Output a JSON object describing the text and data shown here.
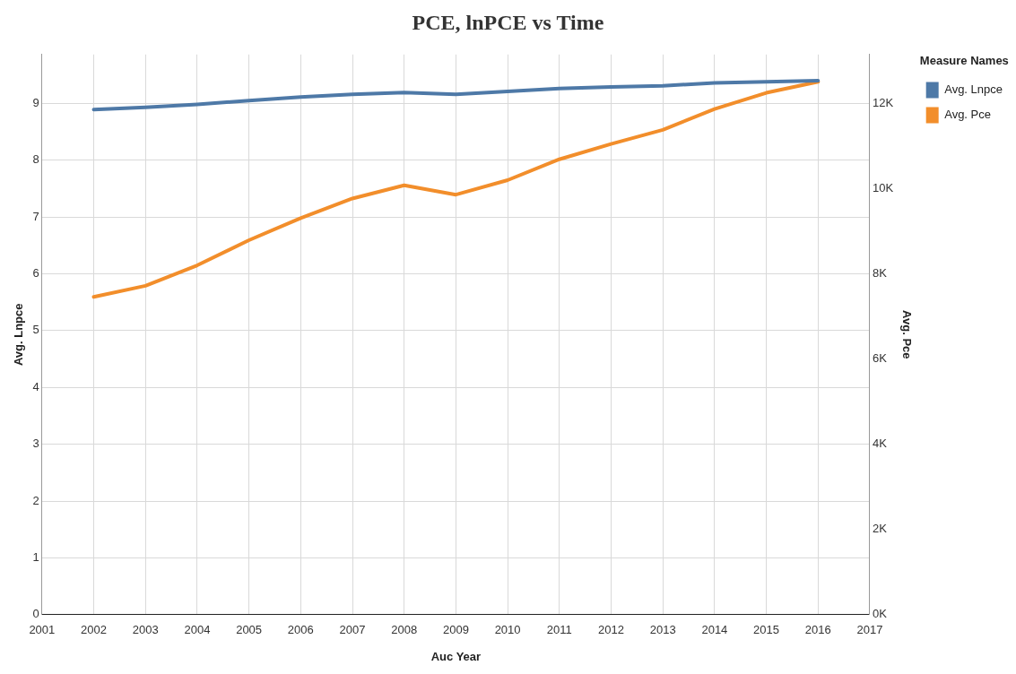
{
  "chart_data": {
    "type": "line",
    "title": "PCE, lnPCE vs Time",
    "xlabel": "Auc Year",
    "ylabel": "Avg. Lnpce",
    "y2label": "Avg. Pce",
    "legend_title": "Measure Names",
    "legend": "top right",
    "grid": true,
    "marker": "none",
    "line_style": "solid",
    "x": [
      2002,
      2003,
      2004,
      2005,
      2006,
      2007,
      2008,
      2009,
      2010,
      2011,
      2012,
      2013,
      2014,
      2015,
      2016
    ],
    "xlim": [
      2001,
      2017
    ],
    "xticks": [
      2001,
      2002,
      2003,
      2004,
      2005,
      2006,
      2007,
      2008,
      2009,
      2010,
      2011,
      2012,
      2013,
      2014,
      2015,
      2016,
      2017
    ],
    "ylim": [
      0,
      9.86
    ],
    "yticks": [
      0,
      1,
      2,
      3,
      4,
      5,
      6,
      7,
      8,
      9
    ],
    "y2lim": [
      0,
      13150
    ],
    "y2ticks": [
      {
        "value": 0,
        "label": "0K"
      },
      {
        "value": 2000,
        "label": "2K"
      },
      {
        "value": 4000,
        "label": "4K"
      },
      {
        "value": 6000,
        "label": "6K"
      },
      {
        "value": 8000,
        "label": "8K"
      },
      {
        "value": 10000,
        "label": "10K"
      },
      {
        "value": 12000,
        "label": "12K"
      }
    ],
    "series": [
      {
        "name": "Avg. Lnpce",
        "color": "#4e79a7",
        "values": [
          8.89,
          8.93,
          8.98,
          9.05,
          9.11,
          9.16,
          9.19,
          9.16,
          9.21,
          9.26,
          9.29,
          9.31,
          9.36,
          9.38,
          9.4
        ]
      },
      {
        "name": "Avg. Pce",
        "color": "#f28e2b",
        "axis": "y2",
        "values": [
          7460,
          7720,
          8200,
          8790,
          9310,
          9770,
          10080,
          9860,
          10200,
          10690,
          11050,
          11380,
          11870,
          12250,
          12510
        ]
      }
    ]
  }
}
